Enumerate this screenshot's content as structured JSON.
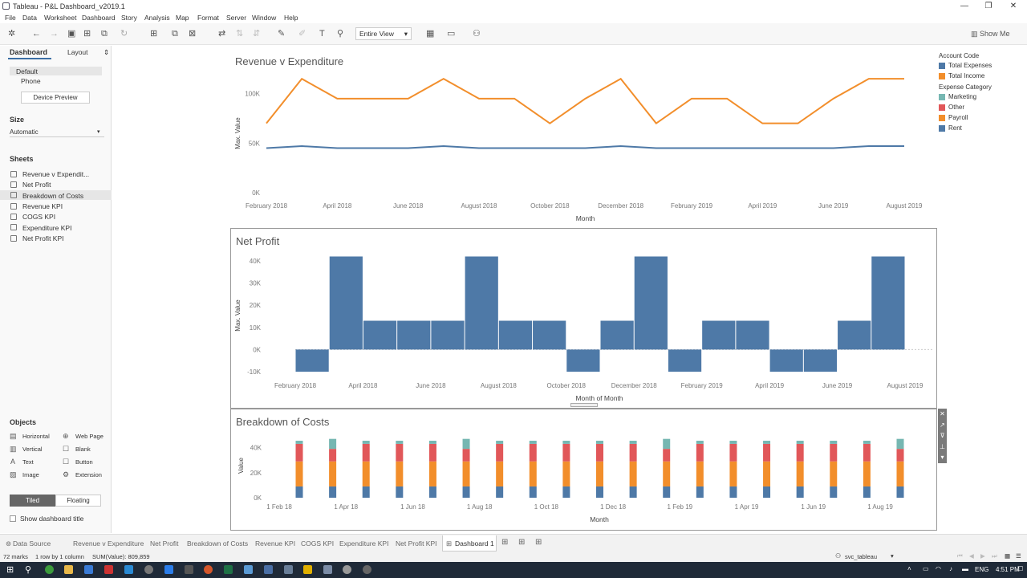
{
  "window": {
    "title": "Tableau - P&L Dashboard_v2019.1"
  },
  "menu": [
    "File",
    "Data",
    "Worksheet",
    "Dashboard",
    "Story",
    "Analysis",
    "Map",
    "Format",
    "Server",
    "Window",
    "Help"
  ],
  "toolbar": {
    "view_select": "Entire View",
    "show_me": "Show Me"
  },
  "left_panel": {
    "tab_dashboard": "Dashboard",
    "tab_layout": "Layout",
    "device_default": "Default",
    "device_phone": "Phone",
    "device_preview": "Device Preview",
    "size_heading": "Size",
    "size_value": "Automatic",
    "sheets_heading": "Sheets",
    "sheets": [
      "Revenue v Expendit...",
      "Net Profit",
      "Breakdown of Costs",
      "Revenue KPI",
      "COGS KPI",
      "Expenditure KPI",
      "Net Profit KPI"
    ],
    "objects_heading": "Objects",
    "objects": [
      "Horizontal",
      "Web Page",
      "Vertical",
      "Blank",
      "Text",
      "Button",
      "Image",
      "Extension"
    ],
    "tiled": "Tiled",
    "floating": "Floating",
    "show_title": "Show dashboard title"
  },
  "tabs": [
    "Data Source",
    "Revenue v Expenditure",
    "Net Profit",
    "Breakdown of Costs",
    "Revenue KPI",
    "COGS KPI",
    "Expenditure KPI",
    "Net Profit KPI",
    "Dashboard 1"
  ],
  "status": {
    "marks": "72 marks",
    "layout": "1 row by 1 column",
    "sum": "SUM(Value): 809,859",
    "user": "svc_tableau"
  },
  "taskbar": {
    "lang": "ENG",
    "time": "4:51 PM"
  },
  "legends": {
    "account_title": "Account Code",
    "account": [
      {
        "name": "Total Expenses",
        "color": "#4e79a7"
      },
      {
        "name": "Total Income",
        "color": "#f28e2b"
      }
    ],
    "expense_title": "Expense Category",
    "expense": [
      {
        "name": "Marketing",
        "color": "#76b7b2"
      },
      {
        "name": "Other",
        "color": "#e15759"
      },
      {
        "name": "Payroll",
        "color": "#f28e2b"
      },
      {
        "name": "Rent",
        "color": "#4e79a7"
      }
    ]
  },
  "chart_data": [
    {
      "type": "line",
      "title": "Revenue v Expenditure",
      "xlabel": "Month",
      "ylabel": "Max. Value",
      "ylim": [
        0,
        120000
      ],
      "yticks": [
        "0K",
        "50K",
        "100K"
      ],
      "xticks": [
        "February 2018",
        "April 2018",
        "June 2018",
        "August 2018",
        "October 2018",
        "December 2018",
        "February 2019",
        "April 2019",
        "June 2019",
        "August 2019"
      ],
      "x": [
        "2018-02",
        "2018-03",
        "2018-04",
        "2018-05",
        "2018-06",
        "2018-07",
        "2018-08",
        "2018-09",
        "2018-10",
        "2018-11",
        "2018-12",
        "2019-01",
        "2019-02",
        "2019-03",
        "2019-04",
        "2019-05",
        "2019-06",
        "2019-07",
        "2019-08"
      ],
      "series": [
        {
          "name": "Total Income",
          "color": "#f28e2b",
          "values": [
            70000,
            115000,
            95000,
            95000,
            95000,
            115000,
            95000,
            95000,
            70000,
            95000,
            115000,
            70000,
            95000,
            95000,
            70000,
            70000,
            95000,
            115000,
            115000
          ]
        },
        {
          "name": "Total Expenses",
          "color": "#4e79a7",
          "values": [
            45000,
            47000,
            45000,
            45000,
            45000,
            47000,
            45000,
            45000,
            45000,
            45000,
            47000,
            45000,
            45000,
            45000,
            45000,
            45000,
            45000,
            47000,
            47000
          ]
        }
      ]
    },
    {
      "type": "bar",
      "title": "Net Profit",
      "xlabel": "Month of Month",
      "ylabel": "Max. Value",
      "ylim": [
        -10000,
        40000
      ],
      "yticks": [
        "-10K",
        "0K",
        "10K",
        "20K",
        "30K",
        "40K"
      ],
      "xticks": [
        "February 2018",
        "April 2018",
        "June 2018",
        "August 2018",
        "October 2018",
        "December 2018",
        "February 2019",
        "April 2019",
        "June 2019",
        "August 2019"
      ],
      "x": [
        "2018-02",
        "2018-03",
        "2018-04",
        "2018-05",
        "2018-06",
        "2018-07",
        "2018-08",
        "2018-09",
        "2018-10",
        "2018-11",
        "2018-12",
        "2019-01",
        "2019-02",
        "2019-03",
        "2019-04",
        "2019-05",
        "2019-06",
        "2019-07"
      ],
      "values": [
        -10000,
        42000,
        13000,
        13000,
        13000,
        42000,
        13000,
        13000,
        -10000,
        13000,
        42000,
        -10000,
        13000,
        13000,
        -10000,
        -10000,
        13000,
        42000
      ],
      "color": "#4e79a7"
    },
    {
      "type": "bar",
      "title": "Breakdown of Costs",
      "xlabel": "Month",
      "ylabel": "Value",
      "ylim": [
        0,
        50000
      ],
      "yticks": [
        "0K",
        "20K",
        "40K"
      ],
      "xticks": [
        "1 Feb 18",
        "1 Apr 18",
        "1 Jun 18",
        "1 Aug 18",
        "1 Oct 18",
        "1 Dec 18",
        "1 Feb 19",
        "1 Apr 19",
        "1 Jun 19",
        "1 Aug 19"
      ],
      "x": [
        "2018-02",
        "2018-03",
        "2018-04",
        "2018-05",
        "2018-06",
        "2018-07",
        "2018-08",
        "2018-09",
        "2018-10",
        "2018-11",
        "2018-12",
        "2019-01",
        "2019-02",
        "2019-03",
        "2019-04",
        "2019-05",
        "2019-06",
        "2019-07",
        "2019-08"
      ],
      "series": [
        {
          "name": "Rent",
          "color": "#4e79a7",
          "values": [
            9000,
            9000,
            9000,
            9000,
            9000,
            9000,
            9000,
            9000,
            9000,
            9000,
            9000,
            9000,
            9000,
            9000,
            9000,
            9000,
            9000,
            9000,
            9000
          ]
        },
        {
          "name": "Payroll",
          "color": "#f28e2b",
          "values": [
            20000,
            20000,
            20000,
            20000,
            20000,
            20000,
            20000,
            20000,
            20000,
            20000,
            20000,
            20000,
            20000,
            20000,
            20000,
            20000,
            20000,
            20000,
            20000
          ]
        },
        {
          "name": "Other",
          "color": "#e15759",
          "values": [
            14000,
            10000,
            14000,
            14000,
            14000,
            10000,
            14000,
            14000,
            14000,
            14000,
            14000,
            10000,
            14000,
            14000,
            14000,
            14000,
            14000,
            14000,
            10000
          ]
        },
        {
          "name": "Marketing",
          "color": "#76b7b2",
          "values": [
            2500,
            8000,
            2500,
            2500,
            2500,
            8000,
            2500,
            2500,
            2500,
            2500,
            2500,
            8000,
            2500,
            2500,
            2500,
            2500,
            2500,
            2500,
            8000
          ]
        }
      ]
    }
  ]
}
